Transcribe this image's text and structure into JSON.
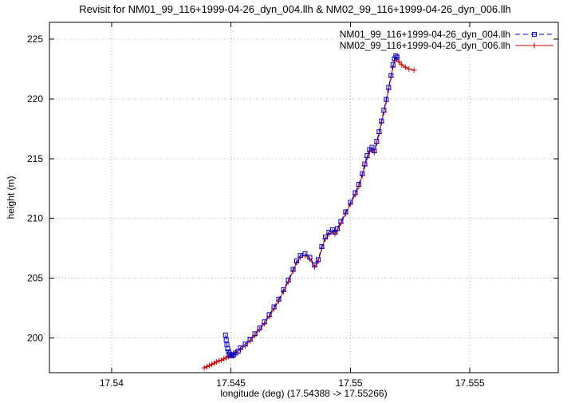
{
  "window": {
    "background": "#ffffff"
  },
  "chart_data": {
    "type": "line",
    "title": "Revisit for NM01_99_116+1999-04-26_dyn_004.llh & NM02_99_116+1999-04-26_dyn_006.llh",
    "xlabel": "longitude (deg) (17.54388 -> 17.55266)",
    "ylabel": "height (m)",
    "xlim": [
      17.5374,
      17.5587
    ],
    "ylim": [
      197.1,
      226.4
    ],
    "xticks": [
      17.54,
      17.545,
      17.55,
      17.555
    ],
    "xtick_labels": [
      "17.54",
      "17.545",
      "17.55",
      "17.555"
    ],
    "yticks": [
      200,
      205,
      210,
      215,
      220,
      225
    ],
    "ytick_labels": [
      "200",
      "205",
      "210",
      "215",
      "220",
      "225"
    ],
    "grid": true,
    "grid_style": "dotted",
    "legend_position": "top-right-inside",
    "series": [
      {
        "name": "NM01_99_116+1999-04-26_dyn_004.llh",
        "color": "#0000cc",
        "marker": "square",
        "line": "dashed",
        "points": [
          [
            17.54477,
            200.25
          ],
          [
            17.5448,
            199.85
          ],
          [
            17.54483,
            199.45
          ],
          [
            17.54486,
            199.1
          ],
          [
            17.5449,
            198.85
          ],
          [
            17.54494,
            198.65
          ],
          [
            17.54499,
            198.52
          ],
          [
            17.54505,
            198.5
          ],
          [
            17.54512,
            198.6
          ],
          [
            17.5452,
            198.75
          ],
          [
            17.5453,
            198.9
          ],
          [
            17.5454,
            199.2
          ],
          [
            17.5456,
            199.5
          ],
          [
            17.5458,
            199.9
          ],
          [
            17.546,
            200.35
          ],
          [
            17.5462,
            200.85
          ],
          [
            17.5464,
            201.35
          ],
          [
            17.5466,
            201.95
          ],
          [
            17.5468,
            202.6
          ],
          [
            17.547,
            203.25
          ],
          [
            17.5472,
            204.05
          ],
          [
            17.5474,
            204.85
          ],
          [
            17.5476,
            205.75
          ],
          [
            17.54775,
            206.45
          ],
          [
            17.5479,
            206.9
          ],
          [
            17.5481,
            207.05
          ],
          [
            17.5483,
            206.75
          ],
          [
            17.5485,
            206.1
          ],
          [
            17.54865,
            206.55
          ],
          [
            17.5488,
            207.65
          ],
          [
            17.54895,
            208.45
          ],
          [
            17.5491,
            208.85
          ],
          [
            17.54925,
            209.05
          ],
          [
            17.54935,
            208.85
          ],
          [
            17.54945,
            209.15
          ],
          [
            17.5496,
            209.75
          ],
          [
            17.5498,
            210.55
          ],
          [
            17.55,
            211.35
          ],
          [
            17.5502,
            212.15
          ],
          [
            17.55035,
            212.85
          ],
          [
            17.5505,
            213.75
          ],
          [
            17.5506,
            214.55
          ],
          [
            17.5507,
            215.25
          ],
          [
            17.5508,
            215.75
          ],
          [
            17.5509,
            215.95
          ],
          [
            17.551,
            215.65
          ],
          [
            17.5511,
            216.45
          ],
          [
            17.5512,
            217.25
          ],
          [
            17.5513,
            218.15
          ],
          [
            17.5514,
            219.05
          ],
          [
            17.5515,
            219.95
          ],
          [
            17.5516,
            220.95
          ],
          [
            17.5517,
            221.95
          ],
          [
            17.55178,
            222.85
          ],
          [
            17.55184,
            223.35
          ],
          [
            17.5519,
            223.6
          ],
          [
            17.55195,
            223.5
          ]
        ]
      },
      {
        "name": "NM02_99_116+1999-04-26_dyn_006.llh",
        "color": "#cc0000",
        "marker": "plus",
        "line": "solid",
        "points": [
          [
            17.54388,
            197.5
          ],
          [
            17.544,
            197.6
          ],
          [
            17.5441,
            197.7
          ],
          [
            17.5442,
            197.8
          ],
          [
            17.5443,
            197.9
          ],
          [
            17.5444,
            198.0
          ],
          [
            17.5445,
            198.1
          ],
          [
            17.5446,
            198.15
          ],
          [
            17.5447,
            198.25
          ],
          [
            17.5448,
            198.35
          ],
          [
            17.5449,
            198.45
          ],
          [
            17.545,
            198.55
          ],
          [
            17.5451,
            198.65
          ],
          [
            17.5452,
            198.8
          ],
          [
            17.5454,
            199.05
          ],
          [
            17.5456,
            199.35
          ],
          [
            17.5458,
            199.75
          ],
          [
            17.546,
            200.2
          ],
          [
            17.5462,
            200.7
          ],
          [
            17.5464,
            201.2
          ],
          [
            17.5466,
            201.8
          ],
          [
            17.5468,
            202.45
          ],
          [
            17.547,
            203.1
          ],
          [
            17.5472,
            203.9
          ],
          [
            17.5474,
            204.7
          ],
          [
            17.5476,
            205.6
          ],
          [
            17.54775,
            206.3
          ],
          [
            17.5479,
            206.75
          ],
          [
            17.5481,
            206.9
          ],
          [
            17.5483,
            206.6
          ],
          [
            17.5485,
            205.95
          ],
          [
            17.54865,
            206.4
          ],
          [
            17.5488,
            207.5
          ],
          [
            17.54895,
            208.3
          ],
          [
            17.5491,
            208.7
          ],
          [
            17.54925,
            208.9
          ],
          [
            17.54935,
            208.7
          ],
          [
            17.54945,
            209.0
          ],
          [
            17.5496,
            209.6
          ],
          [
            17.5498,
            210.4
          ],
          [
            17.55,
            211.2
          ],
          [
            17.5502,
            212.0
          ],
          [
            17.55035,
            212.7
          ],
          [
            17.5505,
            213.6
          ],
          [
            17.5506,
            214.4
          ],
          [
            17.5507,
            215.1
          ],
          [
            17.5508,
            215.6
          ],
          [
            17.5509,
            215.8
          ],
          [
            17.551,
            215.5
          ],
          [
            17.5511,
            216.3
          ],
          [
            17.5512,
            217.1
          ],
          [
            17.5513,
            218.0
          ],
          [
            17.5514,
            218.9
          ],
          [
            17.5515,
            219.8
          ],
          [
            17.5516,
            220.8
          ],
          [
            17.5517,
            221.8
          ],
          [
            17.55178,
            222.65
          ],
          [
            17.55185,
            223.2
          ],
          [
            17.55193,
            223.45
          ],
          [
            17.55203,
            223.1
          ],
          [
            17.55215,
            222.85
          ],
          [
            17.5523,
            222.65
          ],
          [
            17.55245,
            222.5
          ],
          [
            17.55266,
            222.4
          ]
        ]
      }
    ]
  }
}
